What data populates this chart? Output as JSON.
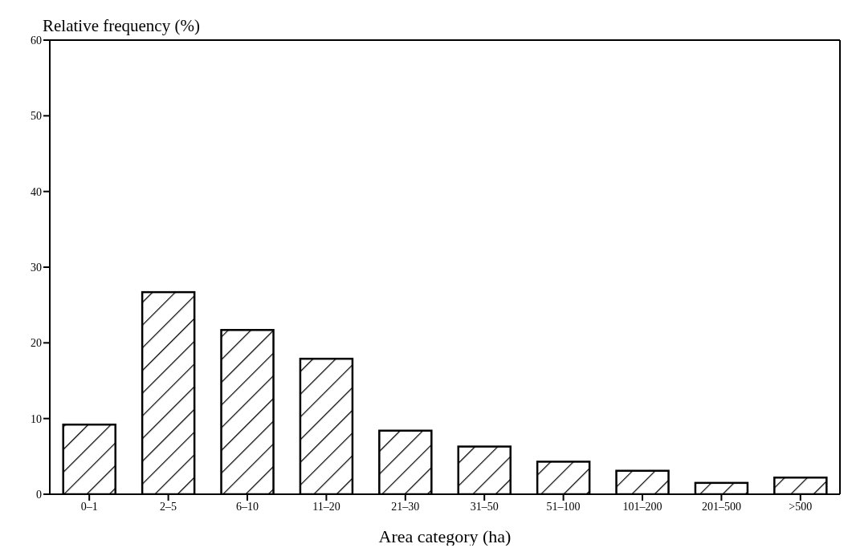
{
  "chart_data": {
    "type": "bar",
    "ylabel": "Relative frequency (%)",
    "xlabel": "Area category (ha)",
    "categories": [
      "0–1",
      "2–5",
      "6–10",
      "11–20",
      "21–30",
      "31–50",
      "51–100",
      "101–200",
      "201–500",
      ">500"
    ],
    "values": [
      9.2,
      26.7,
      21.7,
      17.9,
      8.4,
      6.3,
      4.3,
      3.1,
      1.5,
      2.2
    ],
    "color": "#000000",
    "ylim": [
      0,
      60
    ],
    "yticks": [
      0,
      10,
      20,
      30,
      40,
      50,
      60
    ],
    "grid": false
  }
}
